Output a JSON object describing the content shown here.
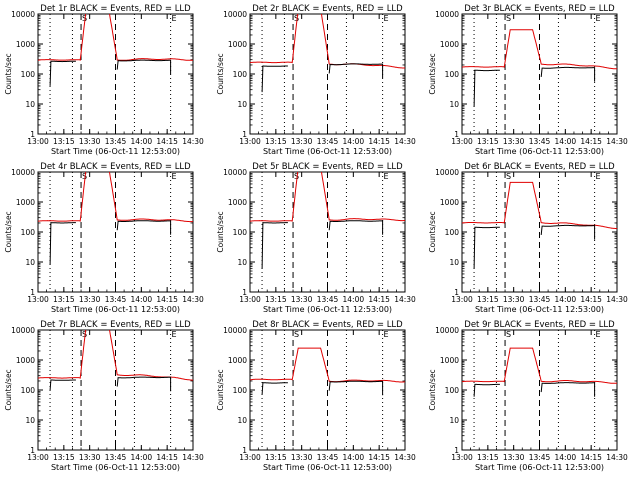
{
  "chart_data": {
    "type": "line",
    "layout": "3x3 grid",
    "scale": {
      "y": "log",
      "y_range": [
        1,
        10000
      ],
      "x_range": [
        "13:00",
        "14:30"
      ]
    },
    "x_ticks": [
      "13:00",
      "13:15",
      "13:30",
      "13:45",
      "14:00",
      "14:15",
      "14:30"
    ],
    "ylabel": "Counts/sec",
    "y_ticks": [
      "1",
      "10",
      "100",
      "1000",
      "10000"
    ],
    "xlabel_full": "Start Time (06-Oct-11 12:53:00)",
    "xlabel_short": "Start Time (06",
    "series_colors": {
      "events": "#000000",
      "lld": "#e00000"
    },
    "vertical_lines": {
      "dotted": [
        "13:07",
        "13:20",
        "13:56",
        "14:17"
      ],
      "dashed": [
        "13:25",
        "13:45"
      ],
      "markers": [
        {
          "label": "S",
          "time": "13:27"
        },
        {
          "label": "E",
          "time": "14:19"
        }
      ]
    },
    "panels": [
      {
        "title": "Det 1r BLACK = Events, RED = LLD",
        "xlabel_style": "full",
        "base_black": 260,
        "base_red": 290,
        "post_black": 280,
        "post_red": 300,
        "peak": 15000,
        "dip": 40,
        "tail_red": 310
      },
      {
        "title": "Det 2r BLACK = Events, RED = LLD",
        "xlabel_style": "full",
        "base_black": 180,
        "base_red": 240,
        "post_black": 210,
        "post_red": 220,
        "peak": 15000,
        "dip": 25,
        "tail_red": 170
      },
      {
        "title": "Det 3r BLACK = Events, RED = LLD",
        "xlabel_style": "full",
        "base_black": 130,
        "base_red": 170,
        "post_black": 160,
        "post_red": 220,
        "peak": 3000,
        "dip": 8,
        "tail_red": 160
      },
      {
        "title": "Det 4r BLACK = Events, RED = LLD",
        "xlabel_style": "full",
        "base_black": 200,
        "base_red": 230,
        "post_black": 230,
        "post_red": 260,
        "peak": 15000,
        "dip": 8,
        "tail_red": 240
      },
      {
        "title": "Det 5r BLACK = Events, RED = LLD",
        "xlabel_style": "full",
        "base_black": 200,
        "base_red": 230,
        "post_black": 230,
        "post_red": 260,
        "peak": 15000,
        "dip": 6,
        "tail_red": 260
      },
      {
        "title": "Det 6r BLACK = Events, RED = LLD",
        "xlabel_style": "full",
        "base_black": 140,
        "base_red": 200,
        "post_black": 160,
        "post_red": 210,
        "peak": 4500,
        "dip": 6,
        "tail_red": 140
      },
      {
        "title": "Det 7r BLACK = Events, RED = LLD",
        "xlabel_style": "full",
        "base_black": 210,
        "base_red": 250,
        "post_black": 260,
        "post_red": 330,
        "peak": 15000,
        "dip": 100,
        "tail_red": 230
      },
      {
        "title": "Det 8r BLACK = Events, RED = LLD",
        "xlabel_style": "full",
        "base_black": 170,
        "base_red": 220,
        "post_black": 190,
        "post_red": 200,
        "peak": 2500,
        "dip": 70,
        "tail_red": 200
      },
      {
        "title": "Det 9r BLACK = Events, RED = LLD",
        "xlabel_style": "full",
        "base_black": 150,
        "base_red": 190,
        "post_black": 170,
        "post_red": 200,
        "peak": 2500,
        "dip": 60,
        "tail_red": 180
      }
    ]
  }
}
